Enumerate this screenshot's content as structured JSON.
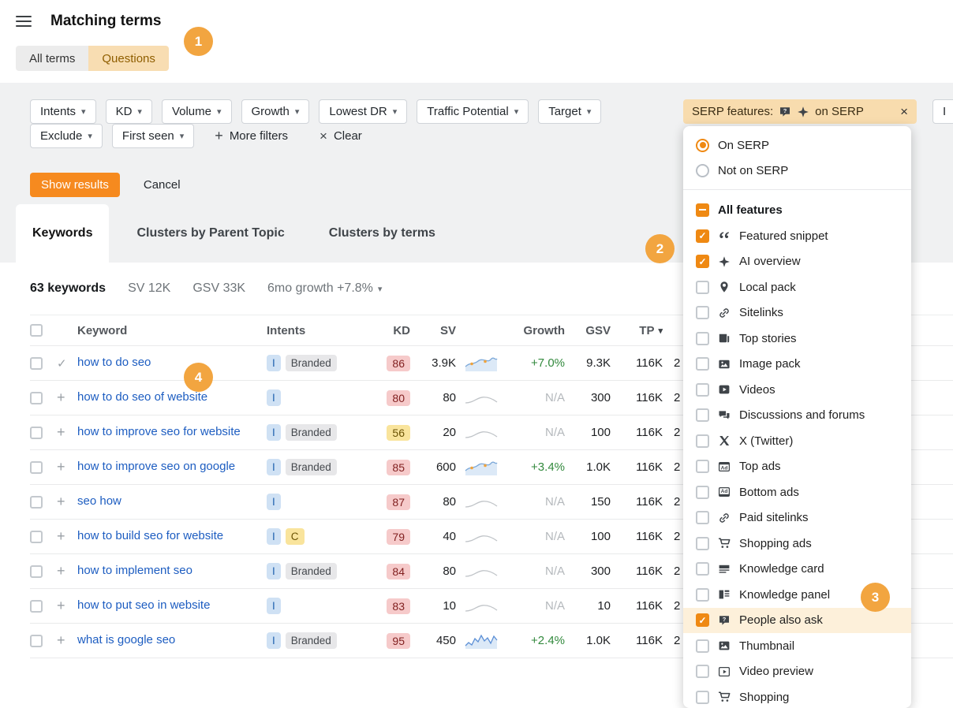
{
  "header": {
    "title": "Matching terms",
    "tabs": [
      {
        "label": "All terms",
        "active": false
      },
      {
        "label": "Questions",
        "active": true
      }
    ]
  },
  "step_badges": [
    "1",
    "2",
    "3",
    "4"
  ],
  "filters": {
    "row1": [
      {
        "label": "Intents"
      },
      {
        "label": "KD"
      },
      {
        "label": "Volume"
      },
      {
        "label": "Growth"
      },
      {
        "label": "Lowest DR"
      },
      {
        "label": "Traffic Potential"
      },
      {
        "label": "Target"
      }
    ],
    "serp_features": {
      "label_prefix": "SERP features:",
      "label_suffix": "on SERP",
      "icons": [
        "people-also-ask-icon",
        "ai-overview-icon"
      ],
      "close_symbol": "×"
    },
    "partial_button": "I",
    "row2": [
      {
        "label": "Exclude"
      },
      {
        "label": "First seen"
      }
    ],
    "more_filters": "More filters",
    "clear": "Clear",
    "show_results": "Show results",
    "cancel": "Cancel"
  },
  "result_tabs": [
    {
      "label": "Keywords",
      "active": true
    },
    {
      "label": "Clusters by Parent Topic",
      "active": false
    },
    {
      "label": "Clusters by terms",
      "active": false
    }
  ],
  "stats": {
    "keywords": "63 keywords",
    "sv": "SV 12K",
    "gsv": "GSV 33K",
    "growth": "6mo growth +7.8%"
  },
  "table": {
    "columns": {
      "keyword": "Keyword",
      "intents": "Intents",
      "kd": "KD",
      "sv": "SV",
      "growth": "Growth",
      "gsv": "GSV",
      "tp": "TP"
    },
    "rows": [
      {
        "keyword": "how to do seo",
        "row_icon": "check",
        "intents": [
          "I",
          "Branded"
        ],
        "kd": "86",
        "kd_color": "red",
        "sv": "3.9K",
        "trend": "up",
        "growth": "+7.0%",
        "gsv": "9.3K",
        "tp": "116K",
        "partial": "2"
      },
      {
        "keyword": "how to do seo of website",
        "row_icon": "plus",
        "intents": [
          "I"
        ],
        "kd": "80",
        "kd_color": "red",
        "sv": "80",
        "trend": "flat",
        "growth": "N/A",
        "gsv": "300",
        "tp": "116K",
        "partial": "2"
      },
      {
        "keyword": "how to improve seo for website",
        "row_icon": "plus",
        "intents": [
          "I",
          "Branded"
        ],
        "kd": "56",
        "kd_color": "yellow",
        "sv": "20",
        "trend": "flat",
        "growth": "N/A",
        "gsv": "100",
        "tp": "116K",
        "partial": "2"
      },
      {
        "keyword": "how to improve seo on google",
        "row_icon": "plus",
        "intents": [
          "I",
          "Branded"
        ],
        "kd": "85",
        "kd_color": "red",
        "sv": "600",
        "trend": "up",
        "growth": "+3.4%",
        "gsv": "1.0K",
        "tp": "116K",
        "partial": "2"
      },
      {
        "keyword": "seo how",
        "row_icon": "plus",
        "intents": [
          "I"
        ],
        "kd": "87",
        "kd_color": "red",
        "sv": "80",
        "trend": "flat",
        "growth": "N/A",
        "gsv": "150",
        "tp": "116K",
        "partial": "2"
      },
      {
        "keyword": "how to build seo for website",
        "row_icon": "plus",
        "intents": [
          "I",
          "C"
        ],
        "kd": "79",
        "kd_color": "red",
        "sv": "40",
        "trend": "flat",
        "growth": "N/A",
        "gsv": "100",
        "tp": "116K",
        "partial": "2"
      },
      {
        "keyword": "how to implement seo",
        "row_icon": "plus",
        "intents": [
          "I",
          "Branded"
        ],
        "kd": "84",
        "kd_color": "red",
        "sv": "80",
        "trend": "flat",
        "growth": "N/A",
        "gsv": "300",
        "tp": "116K",
        "partial": "2"
      },
      {
        "keyword": "how to put seo in website",
        "row_icon": "plus",
        "intents": [
          "I"
        ],
        "kd": "83",
        "kd_color": "red",
        "sv": "10",
        "trend": "flat",
        "growth": "N/A",
        "gsv": "10",
        "tp": "116K",
        "partial": "2"
      },
      {
        "keyword": "what is google seo",
        "row_icon": "plus",
        "intents": [
          "I",
          "Branded"
        ],
        "kd": "95",
        "kd_color": "red",
        "sv": "450",
        "trend": "spiky",
        "growth": "+2.4%",
        "gsv": "1.0K",
        "tp": "116K",
        "partial": "2"
      }
    ]
  },
  "serp_panel": {
    "radios": [
      {
        "label": "On SERP",
        "selected": true
      },
      {
        "label": "Not on SERP",
        "selected": false
      }
    ],
    "all_features": {
      "label": "All features",
      "state": "indeterminate"
    },
    "features": [
      {
        "label": "Featured snippet",
        "checked": true,
        "icon": "featured-snippet-icon",
        "highlighted": false
      },
      {
        "label": "AI overview",
        "checked": true,
        "icon": "ai-overview-icon",
        "highlighted": false
      },
      {
        "label": "Local pack",
        "checked": false,
        "icon": "local-pack-icon",
        "highlighted": false
      },
      {
        "label": "Sitelinks",
        "checked": false,
        "icon": "sitelinks-icon",
        "highlighted": false
      },
      {
        "label": "Top stories",
        "checked": false,
        "icon": "top-stories-icon",
        "highlighted": false
      },
      {
        "label": "Image pack",
        "checked": false,
        "icon": "image-pack-icon",
        "highlighted": false
      },
      {
        "label": "Videos",
        "checked": false,
        "icon": "videos-icon",
        "highlighted": false
      },
      {
        "label": "Discussions and forums",
        "checked": false,
        "icon": "discussions-icon",
        "highlighted": false
      },
      {
        "label": "X (Twitter)",
        "checked": false,
        "icon": "x-twitter-icon",
        "highlighted": false
      },
      {
        "label": "Top ads",
        "checked": false,
        "icon": "top-ads-icon",
        "highlighted": false
      },
      {
        "label": "Bottom ads",
        "checked": false,
        "icon": "bottom-ads-icon",
        "highlighted": false
      },
      {
        "label": "Paid sitelinks",
        "checked": false,
        "icon": "paid-sitelinks-icon",
        "highlighted": false
      },
      {
        "label": "Shopping ads",
        "checked": false,
        "icon": "shopping-ads-icon",
        "highlighted": false
      },
      {
        "label": "Knowledge card",
        "checked": false,
        "icon": "knowledge-card-icon",
        "highlighted": false
      },
      {
        "label": "Knowledge panel",
        "checked": false,
        "icon": "knowledge-panel-icon",
        "highlighted": false
      },
      {
        "label": "People also ask",
        "checked": true,
        "icon": "people-also-ask-icon",
        "highlighted": true
      },
      {
        "label": "Thumbnail",
        "checked": false,
        "icon": "thumbnail-icon",
        "highlighted": false
      },
      {
        "label": "Video preview",
        "checked": false,
        "icon": "video-preview-icon",
        "highlighted": false
      },
      {
        "label": "Shopping",
        "checked": false,
        "icon": "shopping-icon",
        "highlighted": false
      }
    ]
  },
  "colors": {
    "accent_orange": "#f68a1f",
    "step_badge": "#f2a540",
    "active_filter_bg": "#f8dcae",
    "kd_red_bg": "#f6caca",
    "kd_yellow_bg": "#f9e49c",
    "link_blue": "#1d5dc1",
    "growth_green": "#338a3e"
  }
}
